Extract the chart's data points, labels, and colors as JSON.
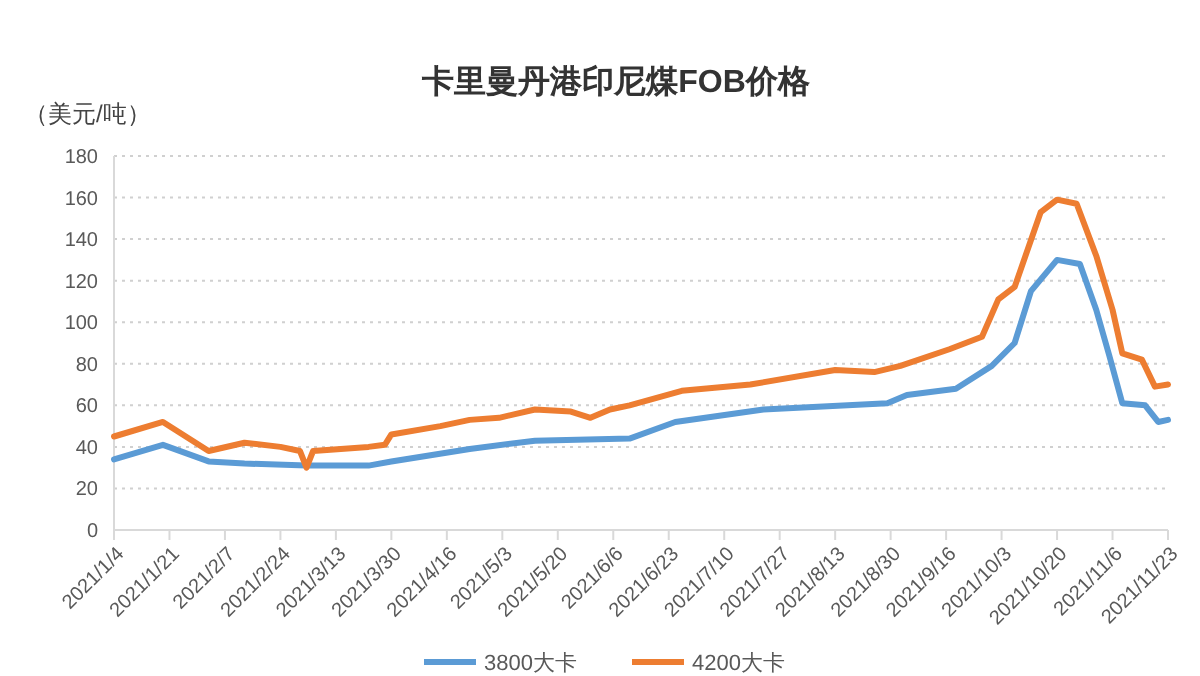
{
  "chart_data": {
    "type": "line",
    "title": "卡里曼丹港印尼煤FOB价格",
    "ylabel": "（美元/吨）",
    "xlim": [
      "2021-01-04",
      "2021-11-23"
    ],
    "xticks": [
      {
        "value": "2021-01-04",
        "label": "2021/1/4"
      },
      {
        "value": "2021-01-21",
        "label": "2021/1/21"
      },
      {
        "value": "2021-02-07",
        "label": "2021/2/7"
      },
      {
        "value": "2021-02-24",
        "label": "2021/2/24"
      },
      {
        "value": "2021-03-13",
        "label": "2021/3/13"
      },
      {
        "value": "2021-03-30",
        "label": "2021/3/30"
      },
      {
        "value": "2021-04-16",
        "label": "2021/4/16"
      },
      {
        "value": "2021-05-03",
        "label": "2021/5/3"
      },
      {
        "value": "2021-05-20",
        "label": "2021/5/20"
      },
      {
        "value": "2021-06-06",
        "label": "2021/6/6"
      },
      {
        "value": "2021-06-23",
        "label": "2021/6/23"
      },
      {
        "value": "2021-07-10",
        "label": "2021/7/10"
      },
      {
        "value": "2021-07-27",
        "label": "2021/7/27"
      },
      {
        "value": "2021-08-13",
        "label": "2021/8/13"
      },
      {
        "value": "2021-08-30",
        "label": "2021/8/30"
      },
      {
        "value": "2021-09-16",
        "label": "2021/9/16"
      },
      {
        "value": "2021-10-03",
        "label": "2021/10/3"
      },
      {
        "value": "2021-10-20",
        "label": "2021/10/20"
      },
      {
        "value": "2021-11-06",
        "label": "2021/11/6"
      },
      {
        "value": "2021-11-23",
        "label": "2021/11/23"
      }
    ],
    "ylim": [
      0,
      180
    ],
    "yticks": [
      0,
      20,
      40,
      60,
      80,
      100,
      120,
      140,
      160,
      180
    ],
    "grid": "y",
    "legend": "bottom",
    "marker": "none",
    "line_style": "solid",
    "series": [
      {
        "name": "3800大卡",
        "color": "#5b9bd5",
        "x": [
          "2021-01-04",
          "2021-01-19",
          "2021-02-02",
          "2021-02-13",
          "2021-03-04",
          "2021-03-23",
          "2021-03-30",
          "2021-04-23",
          "2021-05-13",
          "2021-06-11",
          "2021-06-25",
          "2021-07-22",
          "2021-08-29",
          "2021-09-04",
          "2021-09-19",
          "2021-09-30",
          "2021-10-07",
          "2021-10-12",
          "2021-10-20",
          "2021-10-27",
          "2021-11-01",
          "2021-11-05",
          "2021-11-09",
          "2021-11-16",
          "2021-11-20",
          "2021-11-23"
        ],
        "values": [
          34,
          41,
          33,
          32,
          31,
          31,
          33,
          39,
          43,
          44,
          52,
          58,
          61,
          65,
          68,
          79,
          90,
          115,
          130,
          128,
          106,
          84,
          61,
          60,
          52,
          53
        ]
      },
      {
        "name": "4200大卡",
        "color": "#ed7d31",
        "x": [
          "2021-01-04",
          "2021-01-19",
          "2021-02-02",
          "2021-02-13",
          "2021-02-24",
          "2021-03-02",
          "2021-03-04",
          "2021-03-06",
          "2021-03-23",
          "2021-03-28",
          "2021-03-30",
          "2021-04-14",
          "2021-04-23",
          "2021-05-02",
          "2021-05-13",
          "2021-05-24",
          "2021-05-30",
          "2021-06-05",
          "2021-06-11",
          "2021-06-27",
          "2021-07-18",
          "2021-08-13",
          "2021-08-25",
          "2021-09-02",
          "2021-09-17",
          "2021-09-27",
          "2021-10-02",
          "2021-10-07",
          "2021-10-15",
          "2021-10-20",
          "2021-10-26",
          "2021-11-01",
          "2021-11-06",
          "2021-11-09",
          "2021-11-15",
          "2021-11-19",
          "2021-11-23"
        ],
        "values": [
          45,
          52,
          38,
          42,
          40,
          38,
          30,
          38,
          40,
          41,
          46,
          50,
          53,
          54,
          58,
          57,
          54,
          58,
          60,
          67,
          70,
          77,
          76,
          79,
          87,
          93,
          111,
          117,
          153,
          159,
          157,
          132,
          106,
          85,
          82,
          69,
          70
        ]
      }
    ]
  }
}
